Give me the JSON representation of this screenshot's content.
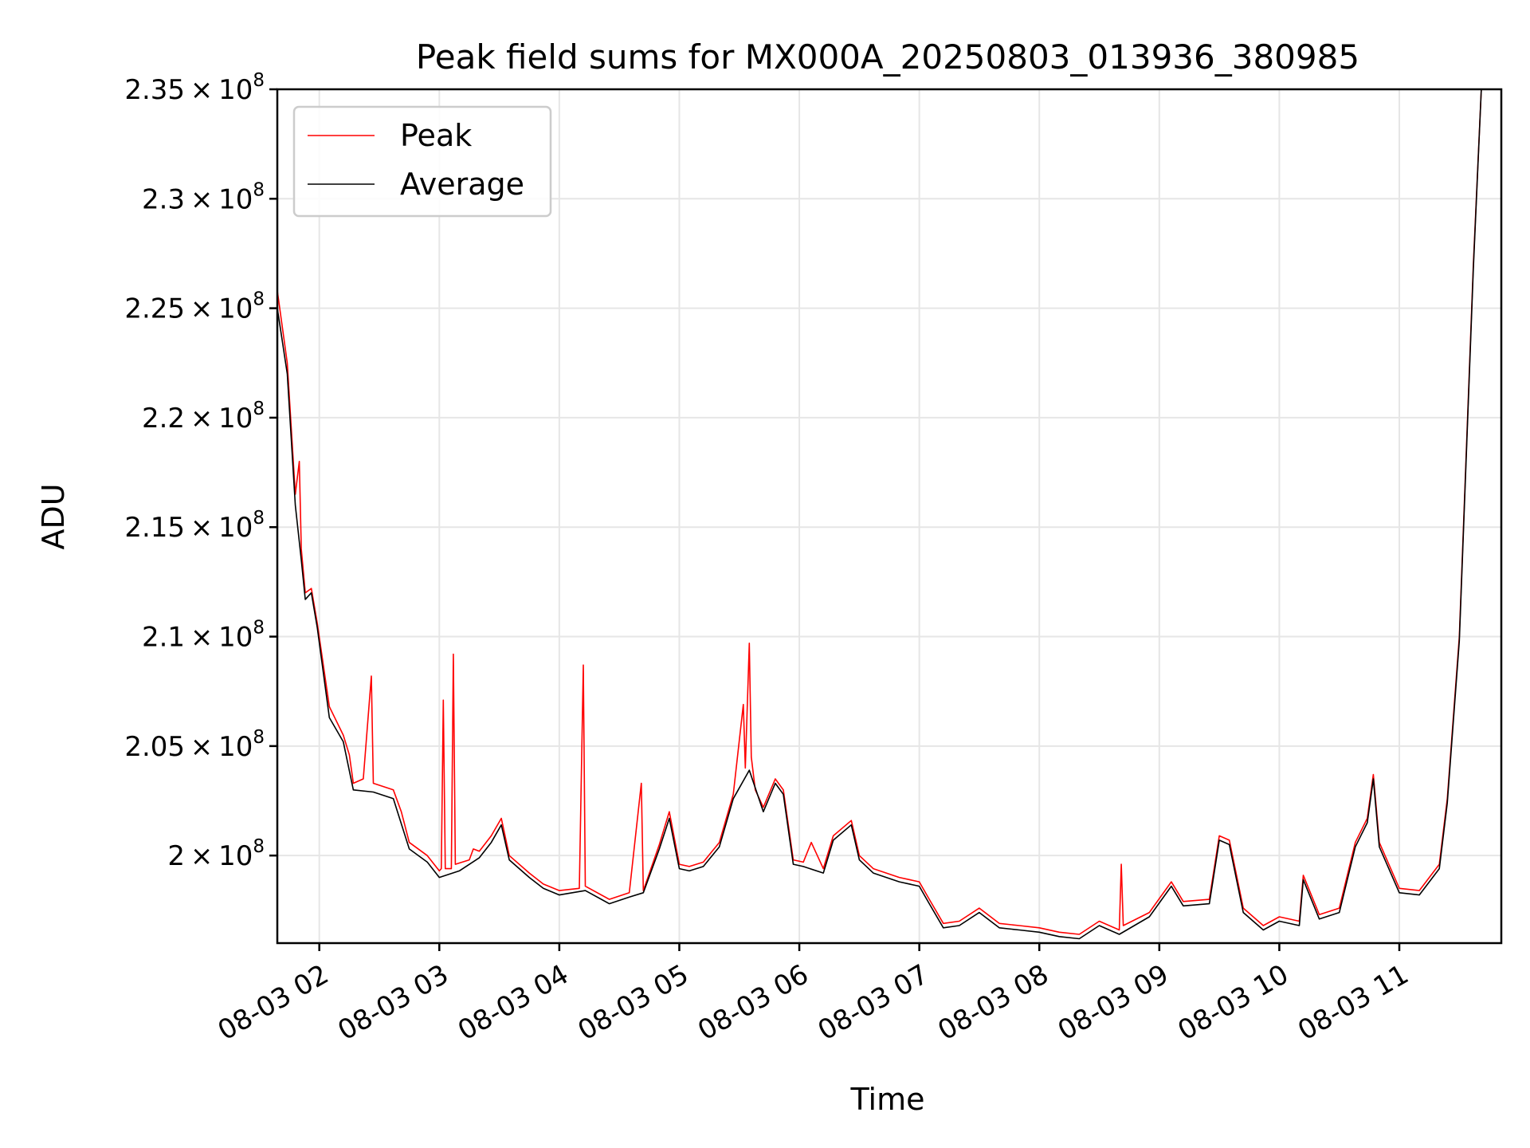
{
  "chart_data": {
    "type": "line",
    "title": "Peak field sums for MX000A_20250803_013936_380985",
    "xlabel": "Time",
    "ylabel": "ADU",
    "x_range": [
      "08-03 01:39",
      "08-03 11:51"
    ],
    "ylim": [
      196000000,
      235000000
    ],
    "grid": true,
    "legend_position": "upper-left",
    "x_ticks": [
      {
        "value": "08-03 02",
        "label": "08-03 02"
      },
      {
        "value": "08-03 03",
        "label": "08-03 03"
      },
      {
        "value": "08-03 04",
        "label": "08-03 04"
      },
      {
        "value": "08-03 05",
        "label": "08-03 05"
      },
      {
        "value": "08-03 06",
        "label": "08-03 06"
      },
      {
        "value": "08-03 07",
        "label": "08-03 07"
      },
      {
        "value": "08-03 08",
        "label": "08-03 08"
      },
      {
        "value": "08-03 09",
        "label": "08-03 09"
      },
      {
        "value": "08-03 10",
        "label": "08-03 10"
      },
      {
        "value": "08-03 11",
        "label": "08-03 11"
      }
    ],
    "y_ticks": [
      {
        "value": 200000000,
        "mantissa": "2",
        "exponent": "8"
      },
      {
        "value": 205000000,
        "mantissa": "2.05",
        "exponent": "8"
      },
      {
        "value": 210000000,
        "mantissa": "2.1",
        "exponent": "8"
      },
      {
        "value": 215000000,
        "mantissa": "2.15",
        "exponent": "8"
      },
      {
        "value": 220000000,
        "mantissa": "2.2",
        "exponent": "8"
      },
      {
        "value": 225000000,
        "mantissa": "2.25",
        "exponent": "8"
      },
      {
        "value": 230000000,
        "mantissa": "2.3",
        "exponent": "8"
      },
      {
        "value": 235000000,
        "mantissa": "2.35",
        "exponent": "8"
      }
    ],
    "series": [
      {
        "name": "Peak",
        "color": "#ff0000",
        "points": [
          [
            "08-03 01:39",
            225800000
          ],
          [
            "08-03 01:44",
            222500000
          ],
          [
            "08-03 01:48",
            216500000
          ],
          [
            "08-03 01:50",
            218000000
          ],
          [
            "08-03 01:51",
            214000000
          ],
          [
            "08-03 01:53",
            212000000
          ],
          [
            "08-03 01:56",
            212200000
          ],
          [
            "08-03 01:59",
            210600000
          ],
          [
            "08-03 02:05",
            206800000
          ],
          [
            "08-03 02:12",
            205500000
          ],
          [
            "08-03 02:15",
            204600000
          ],
          [
            "08-03 02:17",
            203300000
          ],
          [
            "08-03 02:22",
            203500000
          ],
          [
            "08-03 02:26",
            208200000
          ],
          [
            "08-03 02:27",
            203300000
          ],
          [
            "08-03 02:37",
            203000000
          ],
          [
            "08-03 02:41",
            202000000
          ],
          [
            "08-03 02:45",
            200600000
          ],
          [
            "08-03 02:54",
            200000000
          ],
          [
            "08-03 03:00",
            199300000
          ],
          [
            "08-03 03:01",
            199400000
          ],
          [
            "08-03 03:02",
            207100000
          ],
          [
            "08-03 03:03",
            199400000
          ],
          [
            "08-03 03:06",
            199400000
          ],
          [
            "08-03 03:07",
            209200000
          ],
          [
            "08-03 03:08",
            199600000
          ],
          [
            "08-03 03:15",
            199800000
          ],
          [
            "08-03 03:17",
            200300000
          ],
          [
            "08-03 03:20",
            200200000
          ],
          [
            "08-03 03:26",
            200900000
          ],
          [
            "08-03 03:31",
            201700000
          ],
          [
            "08-03 03:35",
            200000000
          ],
          [
            "08-03 03:45",
            199200000
          ],
          [
            "08-03 03:52",
            198700000
          ],
          [
            "08-03 04:00",
            198400000
          ],
          [
            "08-03 04:10",
            198500000
          ],
          [
            "08-03 04:12",
            208700000
          ],
          [
            "08-03 04:13",
            198600000
          ],
          [
            "08-03 04:25",
            198000000
          ],
          [
            "08-03 04:35",
            198300000
          ],
          [
            "08-03 04:41",
            203300000
          ],
          [
            "08-03 04:42",
            198400000
          ],
          [
            "08-03 04:50",
            200500000
          ],
          [
            "08-03 04:55",
            202000000
          ],
          [
            "08-03 05:00",
            199600000
          ],
          [
            "08-03 05:05",
            199500000
          ],
          [
            "08-03 05:12",
            199700000
          ],
          [
            "08-03 05:20",
            200600000
          ],
          [
            "08-03 05:27",
            202800000
          ],
          [
            "08-03 05:32",
            206900000
          ],
          [
            "08-03 05:33",
            204000000
          ],
          [
            "08-03 05:35",
            209700000
          ],
          [
            "08-03 05:36",
            204500000
          ],
          [
            "08-03 05:38",
            203000000
          ],
          [
            "08-03 05:42",
            202200000
          ],
          [
            "08-03 05:48",
            203500000
          ],
          [
            "08-03 05:52",
            203000000
          ],
          [
            "08-03 05:57",
            199800000
          ],
          [
            "08-03 06:02",
            199700000
          ],
          [
            "08-03 06:06",
            200600000
          ],
          [
            "08-03 06:12",
            199400000
          ],
          [
            "08-03 06:17",
            200900000
          ],
          [
            "08-03 06:26",
            201600000
          ],
          [
            "08-03 06:30",
            200000000
          ],
          [
            "08-03 06:37",
            199400000
          ],
          [
            "08-03 06:50",
            199000000
          ],
          [
            "08-03 07:00",
            198800000
          ],
          [
            "08-03 07:05",
            198000000
          ],
          [
            "08-03 07:12",
            196900000
          ],
          [
            "08-03 07:20",
            197000000
          ],
          [
            "08-03 07:30",
            197600000
          ],
          [
            "08-03 07:40",
            196900000
          ],
          [
            "08-03 07:50",
            196800000
          ],
          [
            "08-03 08:00",
            196700000
          ],
          [
            "08-03 08:10",
            196500000
          ],
          [
            "08-03 08:20",
            196400000
          ],
          [
            "08-03 08:30",
            197000000
          ],
          [
            "08-03 08:40",
            196600000
          ],
          [
            "08-03 08:41",
            199600000
          ],
          [
            "08-03 08:42",
            196800000
          ],
          [
            "08-03 08:55",
            197400000
          ],
          [
            "08-03 09:06",
            198800000
          ],
          [
            "08-03 09:12",
            197900000
          ],
          [
            "08-03 09:25",
            198000000
          ],
          [
            "08-03 09:30",
            200900000
          ],
          [
            "08-03 09:35",
            200700000
          ],
          [
            "08-03 09:42",
            197600000
          ],
          [
            "08-03 09:52",
            196800000
          ],
          [
            "08-03 10:00",
            197200000
          ],
          [
            "08-03 10:10",
            197000000
          ],
          [
            "08-03 10:12",
            199100000
          ],
          [
            "08-03 10:20",
            197300000
          ],
          [
            "08-03 10:30",
            197600000
          ],
          [
            "08-03 10:38",
            200600000
          ],
          [
            "08-03 10:44",
            201700000
          ],
          [
            "08-03 10:47",
            203700000
          ],
          [
            "08-03 10:50",
            200600000
          ],
          [
            "08-03 11:00",
            198500000
          ],
          [
            "08-03 11:10",
            198400000
          ],
          [
            "08-03 11:20",
            199600000
          ],
          [
            "08-03 11:24",
            202600000
          ],
          [
            "08-03 11:30",
            210000000
          ],
          [
            "08-03 11:37",
            227000000
          ],
          [
            "08-03 11:41",
            235000000
          ]
        ]
      },
      {
        "name": "Average",
        "color": "#000000",
        "points": [
          [
            "08-03 01:39",
            225000000
          ],
          [
            "08-03 01:44",
            222000000
          ],
          [
            "08-03 01:48",
            216000000
          ],
          [
            "08-03 01:51",
            213500000
          ],
          [
            "08-03 01:53",
            211700000
          ],
          [
            "08-03 01:56",
            212000000
          ],
          [
            "08-03 01:59",
            210400000
          ],
          [
            "08-03 02:05",
            206300000
          ],
          [
            "08-03 02:12",
            205200000
          ],
          [
            "08-03 02:17",
            203000000
          ],
          [
            "08-03 02:27",
            202900000
          ],
          [
            "08-03 02:37",
            202600000
          ],
          [
            "08-03 02:45",
            200300000
          ],
          [
            "08-03 02:54",
            199700000
          ],
          [
            "08-03 03:00",
            199000000
          ],
          [
            "08-03 03:10",
            199300000
          ],
          [
            "08-03 03:20",
            199900000
          ],
          [
            "08-03 03:26",
            200600000
          ],
          [
            "08-03 03:31",
            201400000
          ],
          [
            "08-03 03:35",
            199800000
          ],
          [
            "08-03 03:45",
            199000000
          ],
          [
            "08-03 03:52",
            198500000
          ],
          [
            "08-03 04:00",
            198200000
          ],
          [
            "08-03 04:13",
            198400000
          ],
          [
            "08-03 04:25",
            197800000
          ],
          [
            "08-03 04:35",
            198100000
          ],
          [
            "08-03 04:42",
            198300000
          ],
          [
            "08-03 04:50",
            200300000
          ],
          [
            "08-03 04:55",
            201700000
          ],
          [
            "08-03 05:00",
            199400000
          ],
          [
            "08-03 05:05",
            199300000
          ],
          [
            "08-03 05:12",
            199500000
          ],
          [
            "08-03 05:20",
            200400000
          ],
          [
            "08-03 05:27",
            202600000
          ],
          [
            "08-03 05:35",
            203900000
          ],
          [
            "08-03 05:42",
            202000000
          ],
          [
            "08-03 05:48",
            203300000
          ],
          [
            "08-03 05:52",
            202800000
          ],
          [
            "08-03 05:57",
            199600000
          ],
          [
            "08-03 06:02",
            199500000
          ],
          [
            "08-03 06:12",
            199200000
          ],
          [
            "08-03 06:17",
            200700000
          ],
          [
            "08-03 06:26",
            201400000
          ],
          [
            "08-03 06:30",
            199800000
          ],
          [
            "08-03 06:37",
            199200000
          ],
          [
            "08-03 06:50",
            198800000
          ],
          [
            "08-03 07:00",
            198600000
          ],
          [
            "08-03 07:05",
            197800000
          ],
          [
            "08-03 07:12",
            196700000
          ],
          [
            "08-03 07:20",
            196800000
          ],
          [
            "08-03 07:30",
            197400000
          ],
          [
            "08-03 07:40",
            196700000
          ],
          [
            "08-03 07:50",
            196600000
          ],
          [
            "08-03 08:00",
            196500000
          ],
          [
            "08-03 08:10",
            196300000
          ],
          [
            "08-03 08:20",
            196200000
          ],
          [
            "08-03 08:30",
            196800000
          ],
          [
            "08-03 08:40",
            196400000
          ],
          [
            "08-03 08:55",
            197200000
          ],
          [
            "08-03 09:06",
            198600000
          ],
          [
            "08-03 09:12",
            197700000
          ],
          [
            "08-03 09:25",
            197800000
          ],
          [
            "08-03 09:30",
            200700000
          ],
          [
            "08-03 09:35",
            200500000
          ],
          [
            "08-03 09:42",
            197400000
          ],
          [
            "08-03 09:52",
            196600000
          ],
          [
            "08-03 10:00",
            197000000
          ],
          [
            "08-03 10:10",
            196800000
          ],
          [
            "08-03 10:12",
            198900000
          ],
          [
            "08-03 10:20",
            197100000
          ],
          [
            "08-03 10:30",
            197400000
          ],
          [
            "08-03 10:38",
            200400000
          ],
          [
            "08-03 10:44",
            201500000
          ],
          [
            "08-03 10:47",
            203500000
          ],
          [
            "08-03 10:50",
            200400000
          ],
          [
            "08-03 11:00",
            198300000
          ],
          [
            "08-03 11:10",
            198200000
          ],
          [
            "08-03 11:20",
            199400000
          ],
          [
            "08-03 11:24",
            202400000
          ],
          [
            "08-03 11:30",
            209800000
          ],
          [
            "08-03 11:37",
            226800000
          ],
          [
            "08-03 11:41",
            235000000
          ]
        ]
      }
    ]
  }
}
